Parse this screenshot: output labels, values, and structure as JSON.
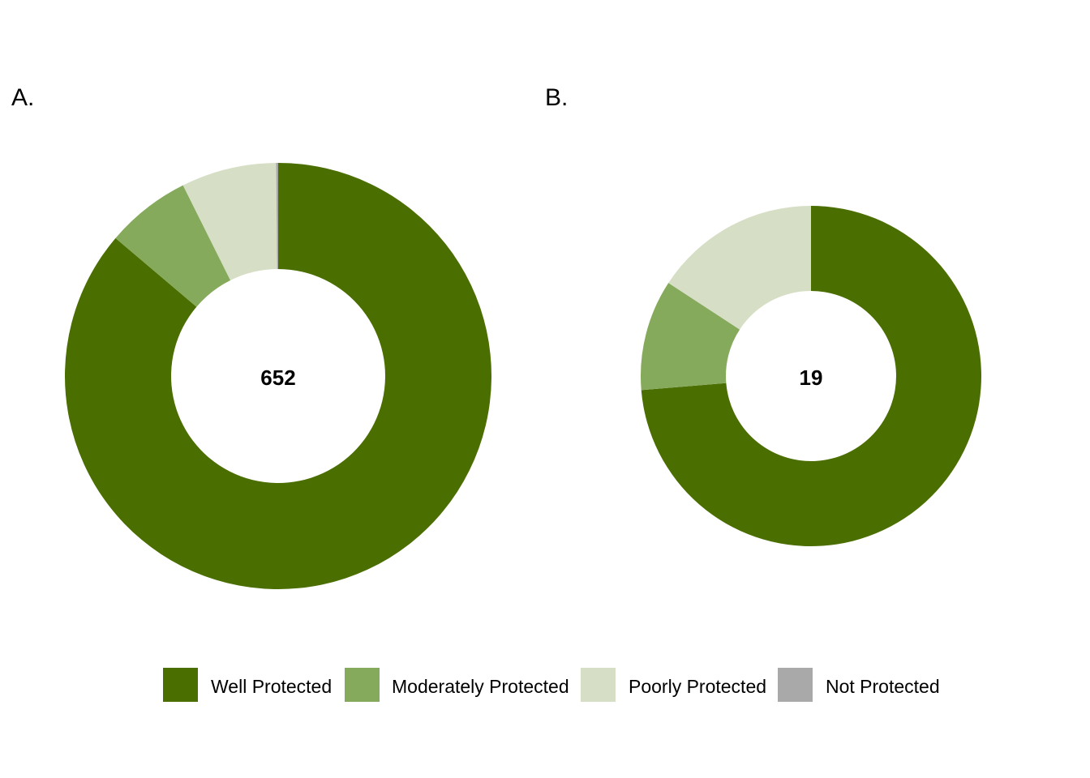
{
  "chart_data": [
    {
      "type": "pie",
      "subtype": "donut",
      "panel_label": "A.",
      "center_label": "652",
      "categories": [
        "Well Protected",
        "Moderately Protected",
        "Poorly Protected",
        "Not Protected"
      ],
      "values": [
        562,
        42,
        47,
        1
      ]
    },
    {
      "type": "pie",
      "subtype": "donut",
      "panel_label": "B.",
      "center_label": "19",
      "categories": [
        "Well Protected",
        "Moderately Protected",
        "Poorly Protected",
        "Not Protected"
      ],
      "values": [
        14,
        2,
        3,
        0
      ]
    }
  ],
  "legend": {
    "placement": "bottom",
    "items": [
      {
        "label": "Well Protected",
        "color": "#4a6e00"
      },
      {
        "label": "Moderately Protected",
        "color": "#86aa5b"
      },
      {
        "label": "Poorly Protected",
        "color": "#d6dfc5"
      },
      {
        "label": "Not Protected",
        "color": "#a9a9a9"
      }
    ]
  }
}
